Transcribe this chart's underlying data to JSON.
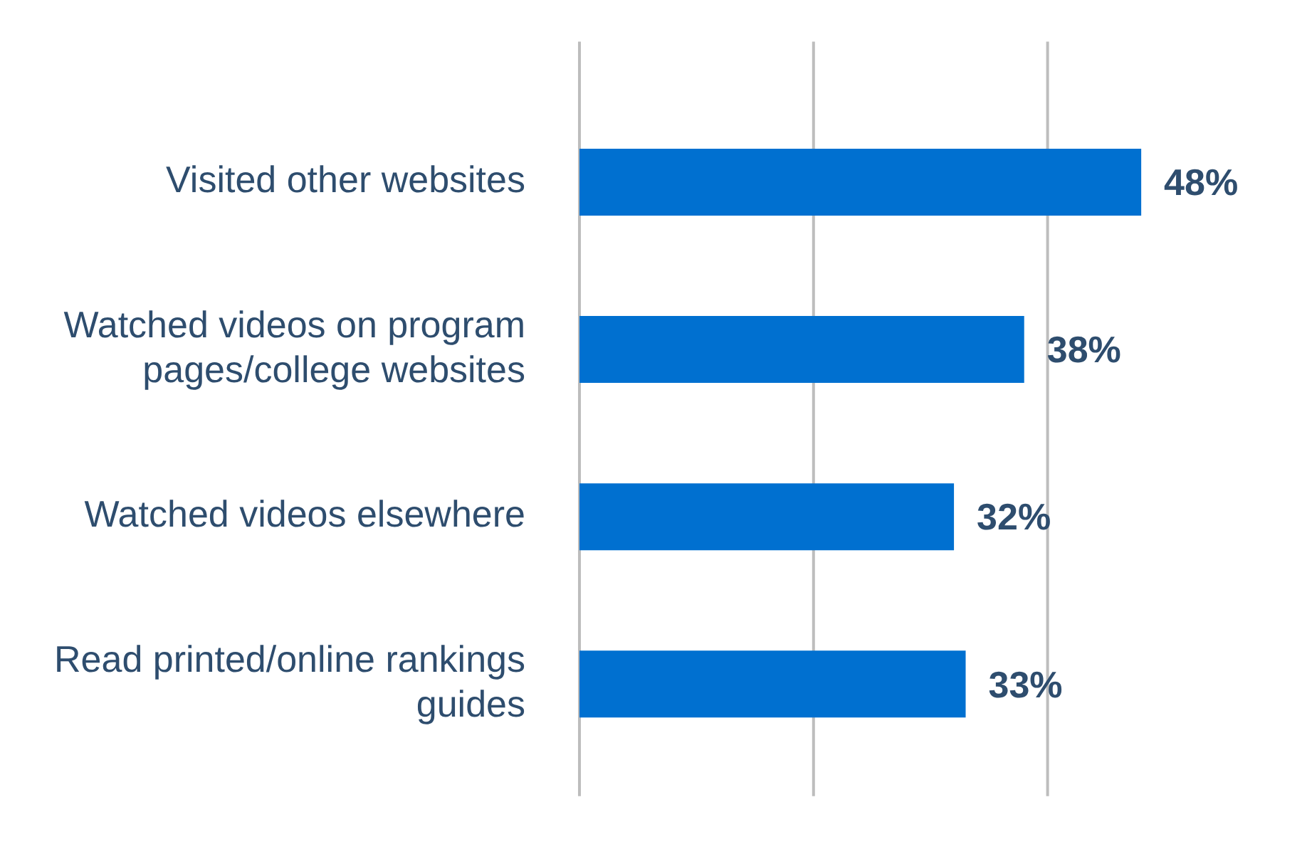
{
  "chart_data": {
    "type": "bar",
    "orientation": "horizontal",
    "categories": [
      "Visited other websites",
      "Watched videos on program pages/college websites",
      "Watched videos elsewhere",
      "Read printed/online rankings guides"
    ],
    "values": [
      48,
      38,
      32,
      33
    ],
    "color": "#0070d0",
    "value_labels": [
      "48%",
      "38%",
      "32%",
      "33%"
    ],
    "ref_lines": [
      {
        "axis": "x",
        "value": 0,
        "color": "#bdbdbd"
      },
      {
        "axis": "x",
        "value": 20,
        "color": "#bdbdbd"
      },
      {
        "axis": "x",
        "value": 40,
        "color": "#bdbdbd"
      }
    ],
    "tick_labels": "y",
    "legend": false
  }
}
